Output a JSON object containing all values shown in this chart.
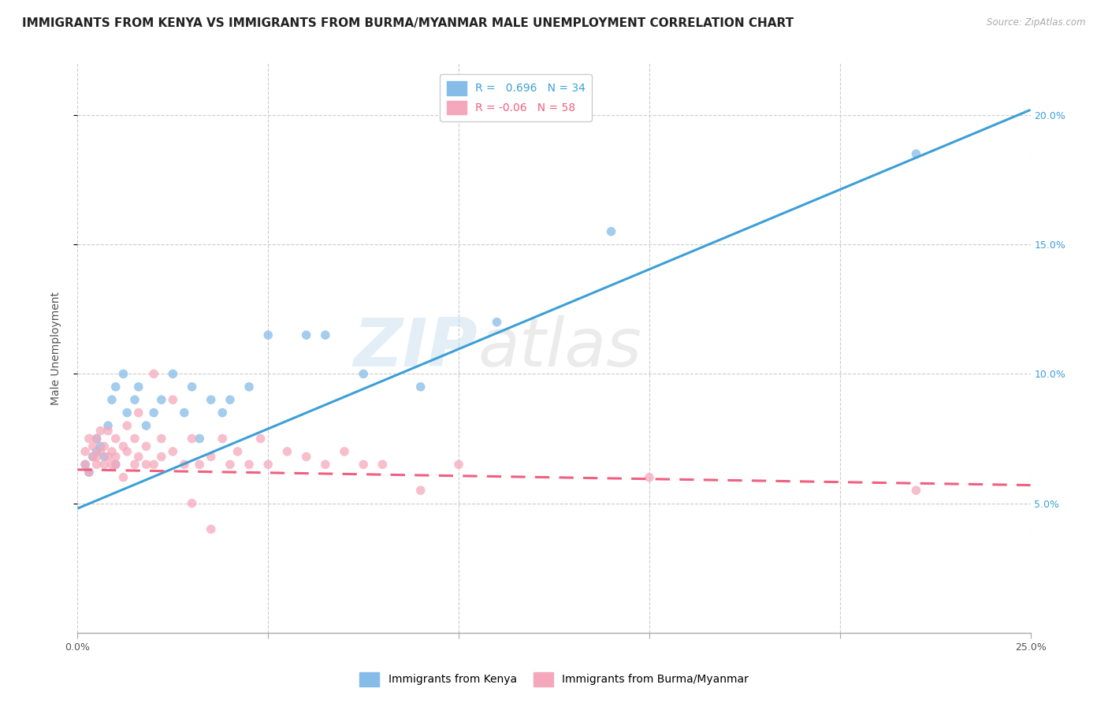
{
  "title": "IMMIGRANTS FROM KENYA VS IMMIGRANTS FROM BURMA/MYANMAR MALE UNEMPLOYMENT CORRELATION CHART",
  "source": "Source: ZipAtlas.com",
  "ylabel": "Male Unemployment",
  "watermark_zip": "ZIP",
  "watermark_atlas": "atlas",
  "xlim": [
    0.0,
    0.25
  ],
  "ylim": [
    0.0,
    0.22
  ],
  "xticks": [
    0.0,
    0.05,
    0.1,
    0.15,
    0.2,
    0.25
  ],
  "xticklabels": [
    "0.0%",
    "",
    "",
    "",
    "",
    "25.0%"
  ],
  "yticks_right": [
    0.05,
    0.1,
    0.15,
    0.2
  ],
  "ytick_labels_right": [
    "5.0%",
    "10.0%",
    "15.0%",
    "20.0%"
  ],
  "kenya_color": "#85bce8",
  "burma_color": "#f5a8bc",
  "kenya_line_color": "#3d9fd6",
  "burma_line_color": "#f06080",
  "kenya_R": 0.696,
  "kenya_N": 34,
  "burma_R": -0.06,
  "burma_N": 58,
  "kenya_line_x0": 0.0,
  "kenya_line_y0": 0.048,
  "kenya_line_x1": 0.25,
  "kenya_line_y1": 0.202,
  "burma_line_x0": 0.0,
  "burma_line_y0": 0.063,
  "burma_line_x1": 0.25,
  "burma_line_y1": 0.057,
  "kenya_scatter_x": [
    0.002,
    0.003,
    0.004,
    0.005,
    0.005,
    0.006,
    0.007,
    0.008,
    0.009,
    0.01,
    0.01,
    0.012,
    0.013,
    0.015,
    0.016,
    0.018,
    0.02,
    0.022,
    0.025,
    0.028,
    0.03,
    0.032,
    0.035,
    0.038,
    0.04,
    0.045,
    0.05,
    0.06,
    0.065,
    0.075,
    0.09,
    0.11,
    0.14,
    0.22
  ],
  "kenya_scatter_y": [
    0.065,
    0.062,
    0.068,
    0.07,
    0.075,
    0.072,
    0.068,
    0.08,
    0.09,
    0.065,
    0.095,
    0.1,
    0.085,
    0.09,
    0.095,
    0.08,
    0.085,
    0.09,
    0.1,
    0.085,
    0.095,
    0.075,
    0.09,
    0.085,
    0.09,
    0.095,
    0.115,
    0.115,
    0.115,
    0.1,
    0.095,
    0.12,
    0.155,
    0.185
  ],
  "burma_scatter_x": [
    0.002,
    0.002,
    0.003,
    0.003,
    0.004,
    0.004,
    0.005,
    0.005,
    0.005,
    0.006,
    0.006,
    0.007,
    0.007,
    0.008,
    0.008,
    0.009,
    0.009,
    0.01,
    0.01,
    0.01,
    0.012,
    0.012,
    0.013,
    0.013,
    0.015,
    0.015,
    0.016,
    0.016,
    0.018,
    0.018,
    0.02,
    0.02,
    0.022,
    0.022,
    0.025,
    0.025,
    0.028,
    0.03,
    0.03,
    0.032,
    0.035,
    0.035,
    0.038,
    0.04,
    0.042,
    0.045,
    0.048,
    0.05,
    0.055,
    0.06,
    0.065,
    0.07,
    0.075,
    0.08,
    0.09,
    0.1,
    0.15,
    0.22
  ],
  "burma_scatter_y": [
    0.065,
    0.07,
    0.062,
    0.075,
    0.068,
    0.072,
    0.065,
    0.068,
    0.075,
    0.07,
    0.078,
    0.065,
    0.072,
    0.068,
    0.078,
    0.065,
    0.07,
    0.065,
    0.068,
    0.075,
    0.06,
    0.072,
    0.07,
    0.08,
    0.065,
    0.075,
    0.068,
    0.085,
    0.065,
    0.072,
    0.065,
    0.1,
    0.068,
    0.075,
    0.07,
    0.09,
    0.065,
    0.05,
    0.075,
    0.065,
    0.04,
    0.068,
    0.075,
    0.065,
    0.07,
    0.065,
    0.075,
    0.065,
    0.07,
    0.068,
    0.065,
    0.07,
    0.065,
    0.065,
    0.055,
    0.065,
    0.06,
    0.055
  ],
  "title_fontsize": 11,
  "axis_label_fontsize": 10,
  "tick_fontsize": 9,
  "legend_fontsize": 10
}
